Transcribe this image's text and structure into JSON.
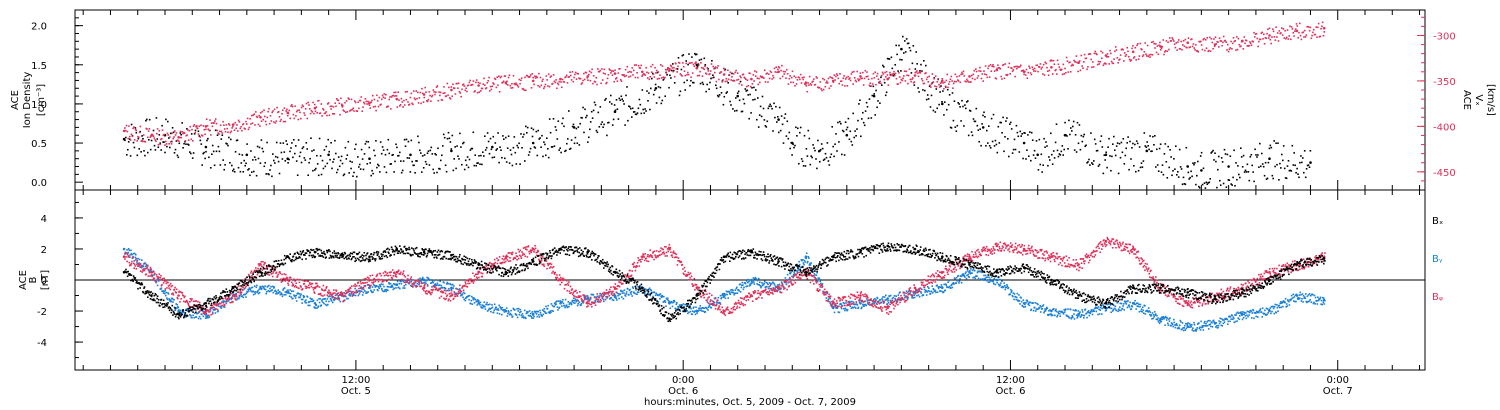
{
  "chart_data": [
    {
      "type": "scatter",
      "panel": "ion_density_and_vx",
      "left_axis": {
        "label_lines": [
          "ACE",
          "Ion Density"
        ],
        "units": "[cm⁻³]",
        "ylim": [
          -0.1,
          2.2
        ],
        "ticks": [
          "0.0",
          "0.5",
          "1.0",
          "1.5",
          "2.0"
        ]
      },
      "right_axis": {
        "label_lines": [
          "ACE",
          "Vₓ"
        ],
        "units": "[km/s]",
        "ylim": [
          -470,
          -272
        ],
        "ticks": [
          "-300",
          "-350",
          "-400",
          "-450"
        ],
        "color": "#e0305a"
      },
      "series": [
        {
          "color": "#000000",
          "axis": "left",
          "x": [
            -17,
            -14,
            -11,
            -8,
            -5,
            -2,
            1,
            4,
            7,
            10,
            13,
            16,
            19,
            22,
            25,
            28,
            31,
            32,
            34,
            36,
            38,
            40,
            43,
            46,
            49,
            50,
            52,
            55,
            58,
            61,
            62,
            64,
            67,
            70
          ],
          "y": [
            0.55,
            0.6,
            0.45,
            0.35,
            0.3,
            0.35,
            0.3,
            0.35,
            0.4,
            0.45,
            0.5,
            0.7,
            0.9,
            1.2,
            1.5,
            1.1,
            0.8,
            0.5,
            0.4,
            0.6,
            1.1,
            1.7,
            1.0,
            0.7,
            0.5,
            0.35,
            0.6,
            0.35,
            0.4,
            0.2,
            0.15,
            0.2,
            0.3,
            0.25
          ]
        },
        {
          "color": "#e0305a",
          "axis": "right",
          "x": [
            -17,
            -15,
            -13,
            -11,
            -9,
            -7,
            -5,
            -3,
            -1,
            1,
            3,
            5,
            7,
            9,
            11,
            13,
            15,
            17,
            19,
            21,
            23,
            25,
            27,
            29,
            31,
            33,
            35,
            37,
            39,
            41,
            43,
            45,
            47,
            49,
            51,
            53,
            55,
            57,
            59,
            61,
            63,
            65,
            67,
            69,
            71
          ],
          "y": [
            -405,
            -410,
            -412,
            -400,
            -398,
            -390,
            -385,
            -380,
            -377,
            -374,
            -370,
            -365,
            -360,
            -355,
            -352,
            -350,
            -348,
            -345,
            -342,
            -340,
            -338,
            -336,
            -343,
            -348,
            -340,
            -352,
            -350,
            -345,
            -348,
            -344,
            -350,
            -345,
            -338,
            -340,
            -335,
            -330,
            -322,
            -318,
            -312,
            -308,
            -310,
            -306,
            -300,
            -295,
            -292
          ]
        }
      ]
    },
    {
      "type": "scatter",
      "panel": "magnetic_field",
      "left_axis": {
        "label_lines": [
          "ACE",
          "B"
        ],
        "units": "[nT]",
        "ylim": [
          -5.8,
          5.8
        ],
        "ticks": [
          "4",
          "2",
          "0",
          "-2",
          "-4"
        ]
      },
      "series": [
        {
          "name": "Bx",
          "color": "#000000",
          "x": [
            -17,
            -15,
            -13,
            -11,
            -9,
            -7,
            -5,
            -3,
            -1,
            1,
            3,
            5,
            7,
            9,
            11,
            13,
            15,
            17,
            19,
            21,
            23,
            25,
            27,
            29,
            31,
            33,
            35,
            37,
            39,
            41,
            43,
            45,
            47,
            49,
            51,
            53,
            55,
            57,
            59,
            61,
            63,
            65,
            67,
            69,
            71
          ],
          "y": [
            0.5,
            -1.0,
            -2.2,
            -1.5,
            -0.5,
            0.5,
            1.5,
            1.8,
            1.6,
            1.5,
            2.0,
            1.8,
            1.6,
            1.0,
            0.5,
            1.2,
            2.0,
            1.8,
            0.5,
            -0.5,
            -2.5,
            -1.0,
            1.5,
            1.8,
            1.2,
            0.5,
            1.5,
            1.8,
            2.2,
            2.0,
            1.5,
            1.0,
            0.5,
            0.8,
            0.0,
            -1.0,
            -1.5,
            -0.5,
            -0.5,
            -0.8,
            -1.2,
            -0.8,
            0.0,
            1.0,
            1.4
          ]
        },
        {
          "name": "By",
          "color": "#1a7fd6",
          "x": [
            -17,
            -15,
            -13,
            -11,
            -9,
            -7,
            -5,
            -3,
            -1,
            1,
            3,
            5,
            7,
            9,
            11,
            13,
            15,
            17,
            19,
            21,
            23,
            25,
            27,
            29,
            31,
            33,
            35,
            37,
            39,
            41,
            43,
            45,
            47,
            49,
            51,
            53,
            55,
            57,
            59,
            61,
            63,
            65,
            67,
            69,
            71
          ],
          "y": [
            2.0,
            0.5,
            -2.0,
            -2.2,
            -1.0,
            -0.5,
            -0.8,
            -1.5,
            -1.0,
            -0.5,
            -0.3,
            0.0,
            -0.5,
            -1.5,
            -2.0,
            -2.2,
            -1.5,
            -1.2,
            -1.0,
            -0.5,
            -1.5,
            -2.0,
            -1.0,
            0.0,
            -0.5,
            1.5,
            -1.8,
            -1.5,
            -1.2,
            -0.8,
            -0.5,
            0.5,
            0.0,
            -1.5,
            -2.0,
            -2.2,
            -1.8,
            -1.5,
            -2.5,
            -3.0,
            -2.8,
            -2.2,
            -2.0,
            -1.0,
            -1.3
          ]
        },
        {
          "name": "Bz",
          "color": "#e0305a",
          "x": [
            -17,
            -15,
            -13,
            -11,
            -9,
            -7,
            -5,
            -3,
            -1,
            1,
            3,
            5,
            7,
            9,
            11,
            13,
            15,
            17,
            19,
            21,
            23,
            25,
            27,
            29,
            31,
            33,
            35,
            37,
            39,
            41,
            43,
            45,
            47,
            49,
            51,
            53,
            55,
            57,
            59,
            61,
            63,
            65,
            67,
            69,
            71
          ],
          "y": [
            1.5,
            0.5,
            -1.0,
            -2.0,
            -1.0,
            1.0,
            0.0,
            -0.5,
            -1.0,
            0.0,
            0.5,
            -0.5,
            -1.0,
            0.5,
            1.5,
            2.0,
            0.0,
            -1.5,
            -0.5,
            1.5,
            2.0,
            -0.5,
            -2.0,
            -1.0,
            -0.5,
            0.5,
            -1.5,
            -1.0,
            -1.8,
            -0.5,
            0.5,
            1.5,
            2.2,
            2.0,
            1.5,
            1.0,
            2.5,
            2.0,
            -0.5,
            -1.5,
            -1.0,
            -0.5,
            0.5,
            1.0,
            1.5
          ]
        }
      ],
      "legend_entries": [
        "Bₓ",
        "Bᵧ",
        "Bᵩ"
      ]
    }
  ],
  "x_axis": {
    "xlim": [
      -20.6,
      78.4
    ],
    "xlabel": "hours:minutes, Oct.  5, 2009 - Oct.  7, 2009",
    "major_ticks": [
      {
        "value": 0,
        "label_top": "12:00",
        "label_bottom": "Oct. 5"
      },
      {
        "value": 24,
        "label_top": "0:00",
        "label_bottom": "Oct. 6"
      },
      {
        "value": 48,
        "label_top": "12:00",
        "label_bottom": "Oct. 6"
      },
      {
        "value": 72,
        "label_top": "0:00",
        "label_bottom": "Oct. 7"
      }
    ],
    "minor_tick_step_hours": 2
  }
}
